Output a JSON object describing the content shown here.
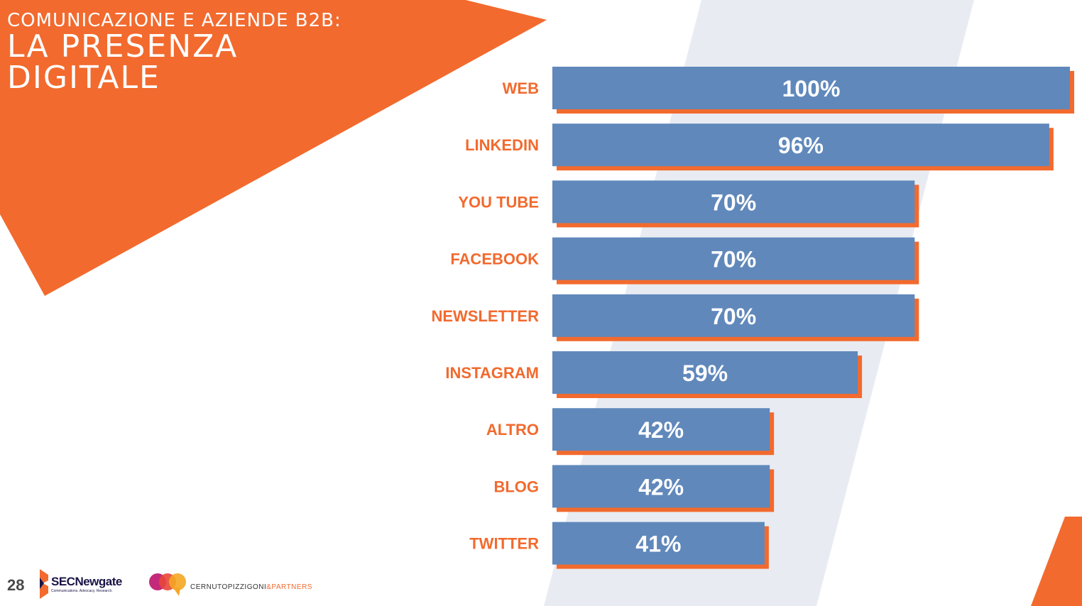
{
  "title": {
    "line1": "COMUNICAZIONE E AZIENDE B2B:",
    "line2": "LA PRESENZA",
    "line3": "DIGITALE"
  },
  "colors": {
    "accent": "#f26a2e",
    "bar": "#6088bb",
    "bar_shadow": "#f26a2e",
    "stripe": "#e8ecf2"
  },
  "footer": {
    "page_number": "28",
    "logo1_name": "SECNewgate",
    "logo1_tagline": "Communications. Advocacy. Research.",
    "logo2_name_part1": "CERNUTOPIZZIGONI",
    "logo2_name_part2": "&PARTNERS"
  },
  "chart_data": {
    "type": "bar",
    "orientation": "horizontal",
    "categories": [
      "WEB",
      "LINKEDIN",
      "YOU TUBE",
      "FACEBOOK",
      "NEWSLETTER",
      "INSTAGRAM",
      "ALTRO",
      "BLOG",
      "TWITTER"
    ],
    "values": [
      100,
      96,
      70,
      70,
      70,
      59,
      42,
      42,
      41
    ],
    "value_labels": [
      "100%",
      "96%",
      "70%",
      "70%",
      "70%",
      "59%",
      "42%",
      "42%",
      "41%"
    ],
    "unit": "%",
    "xlim": [
      0,
      100
    ],
    "grid": false,
    "legend": "none"
  }
}
